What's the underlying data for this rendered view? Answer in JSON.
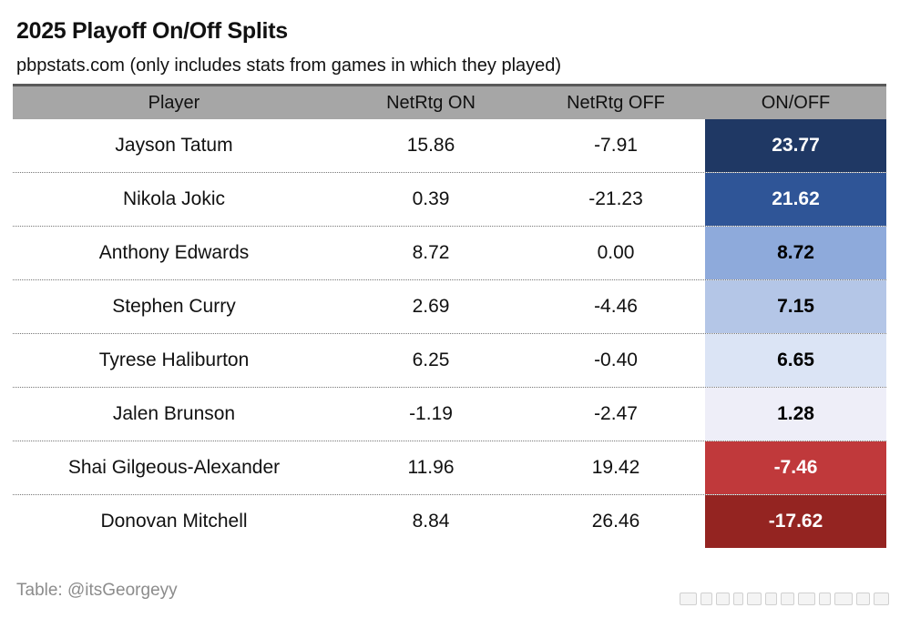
{
  "title": "2025 Playoff On/Off Splits",
  "subtitle": "pbpstats.com (only includes stats from games in which they played)",
  "footer": "Table: @itsGeorgeyy",
  "chart_data": {
    "type": "table",
    "columns": [
      "Player",
      "NetRtg ON",
      "NetRtg OFF",
      "ON/OFF"
    ],
    "rows": [
      {
        "player": "Jayson Tatum",
        "on": "15.86",
        "off": "-7.91",
        "onoff": "23.77",
        "bg": "#1f3864",
        "fg": "#ffffff"
      },
      {
        "player": "Nikola Jokic",
        "on": "0.39",
        "off": "-21.23",
        "onoff": "21.62",
        "bg": "#2f5597",
        "fg": "#ffffff"
      },
      {
        "player": "Anthony Edwards",
        "on": "8.72",
        "off": "0.00",
        "onoff": "8.72",
        "bg": "#8eaadb",
        "fg": "#000000"
      },
      {
        "player": "Stephen Curry",
        "on": "2.69",
        "off": "-4.46",
        "onoff": "7.15",
        "bg": "#b4c6e7",
        "fg": "#000000"
      },
      {
        "player": "Tyrese Haliburton",
        "on": "6.25",
        "off": "-0.40",
        "onoff": "6.65",
        "bg": "#dbe4f5",
        "fg": "#000000"
      },
      {
        "player": "Jalen Brunson",
        "on": "-1.19",
        "off": "-2.47",
        "onoff": "1.28",
        "bg": "#eeeef8",
        "fg": "#000000"
      },
      {
        "player": "Shai Gilgeous-Alexander",
        "on": "11.96",
        "off": "19.42",
        "onoff": "-7.46",
        "bg": "#c0393b",
        "fg": "#ffffff"
      },
      {
        "player": "Donovan Mitchell",
        "on": "8.84",
        "off": "26.46",
        "onoff": "-17.62",
        "bg": "#942421",
        "fg": "#ffffff"
      }
    ]
  }
}
